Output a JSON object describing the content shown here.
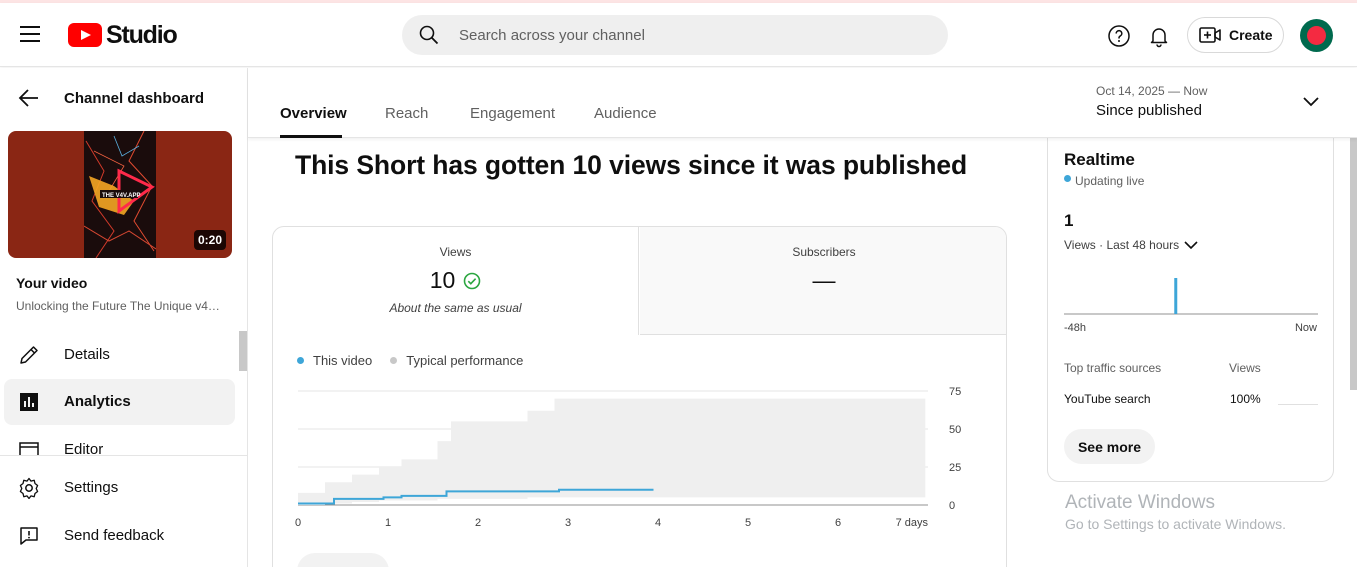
{
  "header": {
    "logo_text": "Studio",
    "search_placeholder": "Search across your channel",
    "create_label": "Create",
    "icons": [
      "menu-icon",
      "search-icon",
      "help-icon",
      "bell-icon",
      "create-video-icon"
    ]
  },
  "sidebar": {
    "back_label": "Channel dashboard",
    "thumbnail_duration": "0:20",
    "your_video_label": "Your video",
    "video_title": "Unlocking the Future The Unique v4…",
    "items": [
      {
        "label": "Details",
        "icon": "pencil-icon",
        "active": false
      },
      {
        "label": "Analytics",
        "icon": "analytics-icon",
        "active": true
      },
      {
        "label": "Editor",
        "icon": "editor-icon",
        "active": false
      }
    ],
    "bottom_items": [
      {
        "label": "Settings",
        "icon": "gear-icon"
      },
      {
        "label": "Send feedback",
        "icon": "feedback-icon"
      }
    ]
  },
  "tabs": [
    {
      "label": "Overview",
      "active": true
    },
    {
      "label": "Reach",
      "active": false
    },
    {
      "label": "Engagement",
      "active": false
    },
    {
      "label": "Audience",
      "active": false
    }
  ],
  "date_range": {
    "range": "Oct 14, 2025 — Now",
    "label": "Since published"
  },
  "main": {
    "headline": "This Short has gotten 10 views since it was published",
    "metrics": [
      {
        "label": "Views",
        "value": "10",
        "sub": "About the same as usual"
      },
      {
        "label": "Subscribers",
        "value": "—",
        "sub": ""
      }
    ],
    "legend": {
      "this_video": "This video",
      "typical": "Typical performance"
    }
  },
  "chart_data": {
    "type": "line",
    "x_ticks": [
      "0",
      "1",
      "2",
      "3",
      "4",
      "5",
      "6",
      "7 days"
    ],
    "y_ticks": [
      "75",
      "50",
      "25",
      "0"
    ],
    "ylim": [
      0,
      75
    ],
    "xlim": [
      0,
      7
    ],
    "grid": true,
    "legend_position": "top-left",
    "series": [
      {
        "name": "This video",
        "color": "#3ea6d8",
        "x": [
          0,
          0.4,
          0.4,
          0.95,
          0.95,
          1.15,
          1.15,
          1.65,
          1.65,
          2.9,
          2.9,
          3.95
        ],
        "y": [
          1,
          1,
          4,
          4,
          5,
          5,
          6,
          6,
          9,
          9,
          10,
          10
        ]
      },
      {
        "name": "Typical performance",
        "color": "#efefef",
        "x": [
          0,
          0.3,
          0.3,
          0.6,
          0.6,
          0.9,
          0.9,
          1.15,
          1.15,
          1.55,
          1.55,
          1.7,
          1.7,
          2.55,
          2.55,
          2.85,
          2.85,
          6.97
        ],
        "y_high": [
          8,
          8,
          15,
          15,
          20,
          20,
          25,
          25,
          30,
          30,
          42,
          42,
          55,
          55,
          62,
          62,
          70,
          70
        ],
        "y_low": [
          0,
          0,
          1,
          1,
          2,
          2,
          3,
          3,
          3,
          3,
          4,
          4,
          4,
          4,
          5,
          5,
          5,
          5
        ]
      }
    ]
  },
  "realtime": {
    "title": "Realtime",
    "status": "Updating live",
    "count": "1",
    "period": "Views · Last 48 hours",
    "axis_start": "-48h",
    "axis_end": "Now",
    "bar_position_fraction": 0.44,
    "bar_value": 1,
    "traffic_header": "Top traffic sources",
    "views_header": "Views",
    "sources": [
      {
        "name": "YouTube search",
        "percent": "100%"
      }
    ],
    "see_more": "See more"
  },
  "windows_overlay": {
    "line1": "Activate Windows",
    "line2": "Go to Settings to activate Windows."
  },
  "colors": {
    "accent_blue": "#3ea6d8",
    "brand_red": "#ff0000",
    "typical_band": "#efefef",
    "check_green": "#2ba640"
  }
}
